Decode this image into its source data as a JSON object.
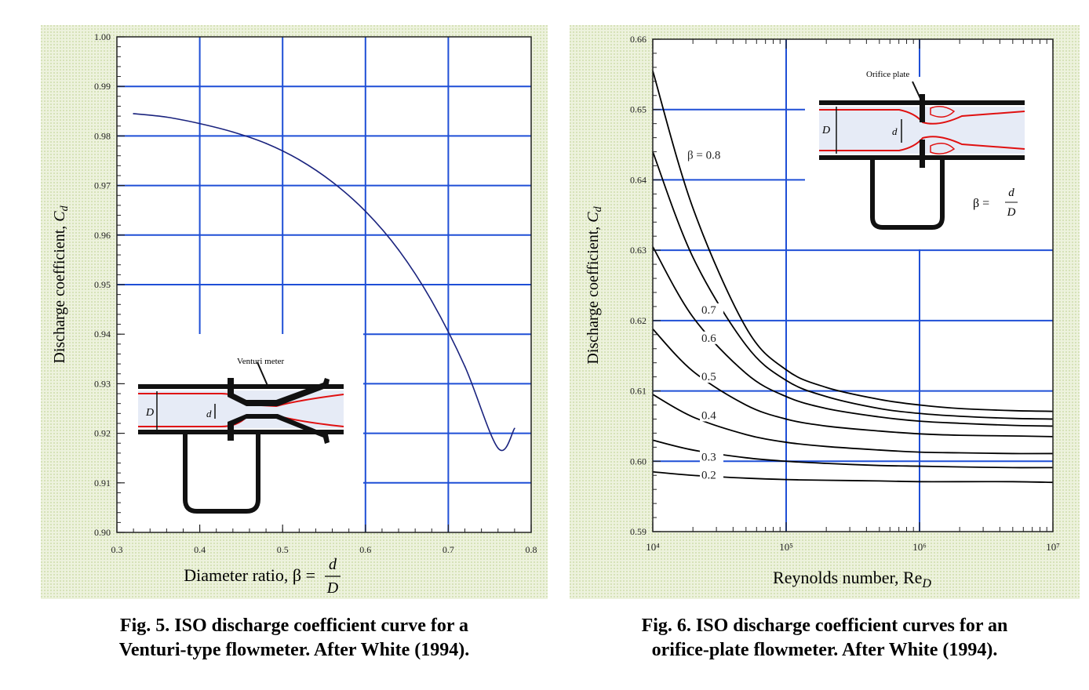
{
  "colors": {
    "background_pattern": "#e4ecd0",
    "plot_bg": "#ffffff",
    "grid": "#1f4fd6",
    "curve_fig5": "#1a237e",
    "curve_fig6": "#000000",
    "pipe_fluid": "#e6ebf6",
    "streamline": "#e01010"
  },
  "chart_data": [
    {
      "type": "line",
      "xlabel": "Diameter ratio, β = d/D",
      "ylabel": "Discharge coefficient, Cd",
      "xlim": [
        0.3,
        0.8
      ],
      "ylim": [
        0.9,
        1.0
      ],
      "xticks": [
        "0.3",
        "0.4",
        "0.5",
        "0.6",
        "0.7",
        "0.8"
      ],
      "yticks": [
        "0.90",
        "0.91",
        "0.92",
        "0.93",
        "0.94",
        "0.95",
        "0.96",
        "0.97",
        "0.98",
        "0.99",
        "1.00"
      ],
      "grid": true,
      "x": [
        0.32,
        0.36,
        0.4,
        0.44,
        0.48,
        0.52,
        0.56,
        0.6,
        0.64,
        0.68,
        0.72,
        0.76,
        0.78
      ],
      "series": [
        {
          "values": [
            0.9845,
            0.9838,
            0.9825,
            0.9808,
            0.9785,
            0.9752,
            0.9707,
            0.9648,
            0.957,
            0.9467,
            0.9335,
            0.917,
            0.921
          ]
        }
      ],
      "inset": {
        "label": "Venturi meter",
        "D": "D",
        "d": "d"
      }
    },
    {
      "type": "line",
      "xlabel": "Reynolds number, ReD",
      "ylabel": "Discharge coefficient, Cd",
      "xscale": "log",
      "xlim": [
        10000,
        10000000
      ],
      "ylim": [
        0.59,
        0.66
      ],
      "xticks": [
        "10⁴",
        "10⁵",
        "10⁶",
        "10⁷"
      ],
      "yticks": [
        "0.59",
        "0.60",
        "0.61",
        "0.62",
        "0.63",
        "0.64",
        "0.65",
        "0.66"
      ],
      "grid": true,
      "x": [
        10000,
        20000,
        50000,
        100000,
        200000,
        500000,
        1000000,
        2000000,
        5000000,
        10000000
      ],
      "series": [
        {
          "name": "β = 0.8",
          "values": [
            0.6555,
            0.636,
            0.619,
            0.613,
            0.6105,
            0.6088,
            0.608,
            0.6075,
            0.6072,
            0.6071
          ]
        },
        {
          "name": "0.7",
          "values": [
            0.644,
            0.629,
            0.6165,
            0.6115,
            0.6092,
            0.6075,
            0.6068,
            0.6064,
            0.6061,
            0.606
          ]
        },
        {
          "name": "0.6",
          "values": [
            0.6305,
            0.6205,
            0.6125,
            0.6092,
            0.6075,
            0.6063,
            0.6057,
            0.6054,
            0.6051,
            0.605
          ]
        },
        {
          "name": "0.5",
          "values": [
            0.6188,
            0.6128,
            0.608,
            0.606,
            0.605,
            0.6043,
            0.6039,
            0.6037,
            0.6036,
            0.6035
          ]
        },
        {
          "name": "0.4",
          "values": [
            0.6095,
            0.6063,
            0.6038,
            0.6027,
            0.6021,
            0.6016,
            0.6013,
            0.6012,
            0.6011,
            0.6011
          ]
        },
        {
          "name": "0.3",
          "values": [
            0.603,
            0.6016,
            0.6005,
            0.6,
            0.5997,
            0.5994,
            0.5993,
            0.5992,
            0.5991,
            0.5991
          ]
        },
        {
          "name": "0.2",
          "values": [
            0.5985,
            0.598,
            0.5976,
            0.5974,
            0.5973,
            0.5972,
            0.5971,
            0.5971,
            0.5971,
            0.597
          ]
        }
      ],
      "inset": {
        "label": "Orifice plate",
        "D": "D",
        "d": "d",
        "beta_symbol": "β =",
        "beta_num": "d",
        "beta_den": "D"
      }
    }
  ],
  "captions": {
    "fig5_line1": "Fig. 5.  ISO discharge coefficient curve for a",
    "fig5_line2": "Venturi-type flowmeter.  After White (1994).",
    "fig6_line1": "Fig. 6.  ISO discharge coefficient curves for an",
    "fig6_line2": "orifice-plate flowmeter.  After White (1994)."
  }
}
